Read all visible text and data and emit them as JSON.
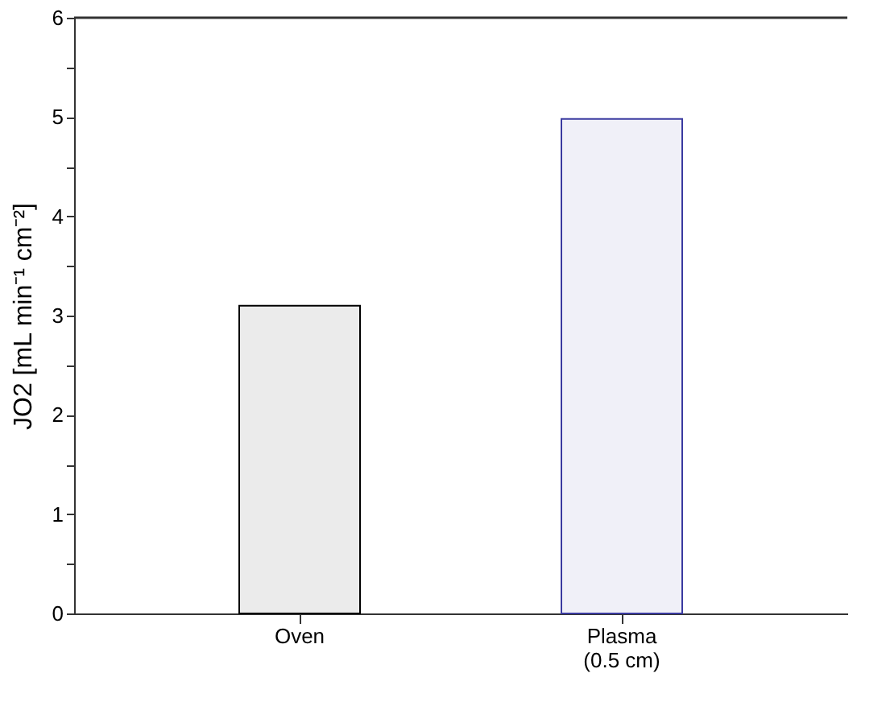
{
  "chart_data": {
    "type": "bar",
    "categories": [
      "Oven",
      "Plasma\n(0.5 cm)"
    ],
    "values": [
      3.1,
      4.98
    ],
    "colors": [
      "#000000",
      "#3a3aa0"
    ],
    "ylabel": "JO2 [mL min⁻¹ cm⁻²]",
    "ylim": [
      0,
      6
    ],
    "yticks": [
      0,
      {
        "value": 0.5,
        "label": null
      },
      1,
      {
        "value": 1.5,
        "label": null
      },
      2,
      {
        "value": 2.5,
        "label": null
      },
      3,
      {
        "value": 3.5,
        "label": null
      },
      4,
      {
        "value": 4.5,
        "label": null
      },
      5,
      {
        "value": 5.5,
        "label": null
      },
      6
    ],
    "grid": false
  }
}
